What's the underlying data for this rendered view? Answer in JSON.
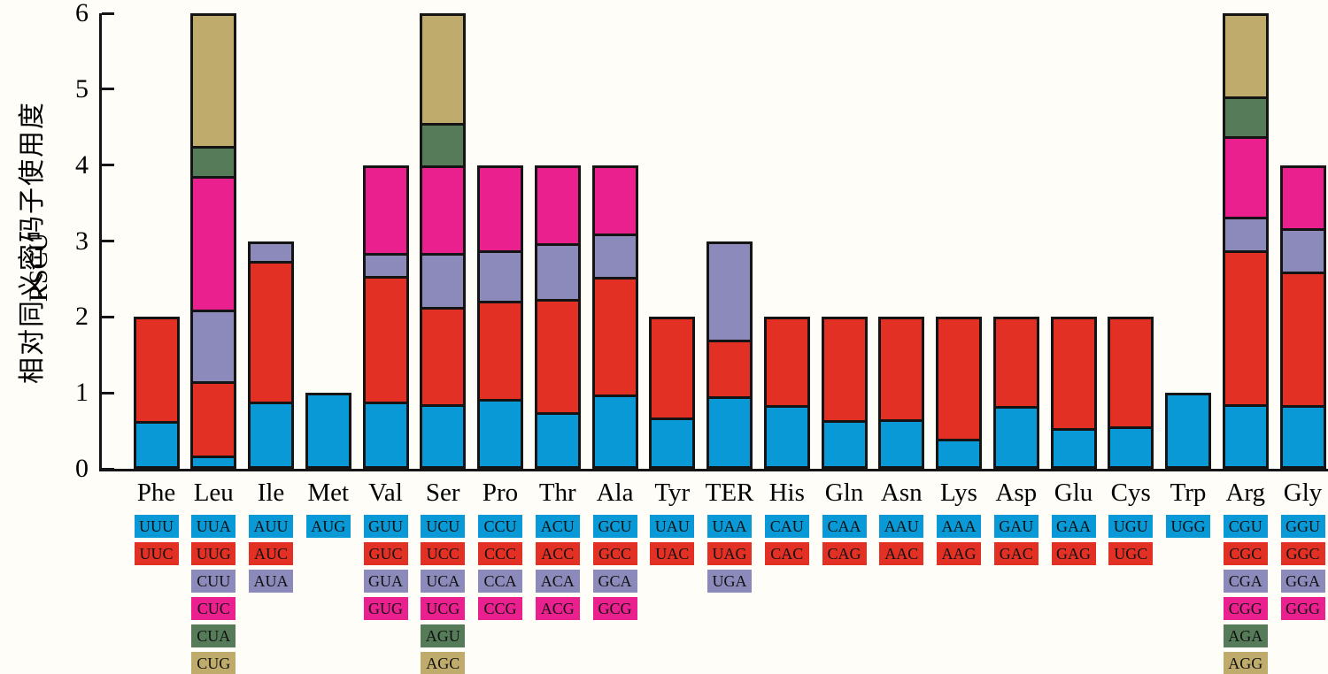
{
  "figure": {
    "background_color": "#FFFDF7",
    "line_color": "#141414"
  },
  "axes": {
    "y_label_cn": "相对同义密码子使用度",
    "y_label_en": "RSCU",
    "y_ticks": [
      "0",
      "1",
      "2",
      "3",
      "4",
      "5",
      "6"
    ],
    "y_min": 0,
    "y_max": 6
  },
  "chart_data": {
    "type": "bar",
    "stacked": true,
    "title": "",
    "xlabel": "",
    "ylabel": "相对同义密码子使用度 RSCU",
    "ylim": [
      0,
      6
    ],
    "grid": false,
    "legend_position": "none",
    "segment_colors": [
      "#0999D6",
      "#E23124",
      "#8C8ABA",
      "#E9208E",
      "#567B59",
      "#BFAC6C"
    ],
    "groups": [
      {
        "amino_acid": "Phe",
        "codons": [
          "UUU",
          "UUC"
        ],
        "values": [
          0.63,
          1.37
        ]
      },
      {
        "amino_acid": "Leu",
        "codons": [
          "UUA",
          "UUG",
          "CUU",
          "CUC",
          "CUA",
          "CUG"
        ],
        "values": [
          0.17,
          0.98,
          0.95,
          1.76,
          0.39,
          1.75
        ]
      },
      {
        "amino_acid": "Ile",
        "codons": [
          "AUU",
          "AUC",
          "AUA"
        ],
        "values": [
          0.89,
          1.85,
          0.26
        ]
      },
      {
        "amino_acid": "Met",
        "codons": [
          "AUG"
        ],
        "values": [
          1.0
        ]
      },
      {
        "amino_acid": "Val",
        "codons": [
          "GUU",
          "GUC",
          "GUA",
          "GUG"
        ],
        "values": [
          0.89,
          1.65,
          0.3,
          1.16
        ]
      },
      {
        "amino_acid": "Ser",
        "codons": [
          "UCU",
          "UCC",
          "UCA",
          "UCG",
          "AGU",
          "AGC"
        ],
        "values": [
          0.85,
          1.28,
          0.71,
          1.16,
          0.56,
          1.44
        ]
      },
      {
        "amino_acid": "Pro",
        "codons": [
          "CCU",
          "CCC",
          "CCA",
          "CCG"
        ],
        "values": [
          0.92,
          1.29,
          0.67,
          1.12
        ]
      },
      {
        "amino_acid": "Thr",
        "codons": [
          "ACU",
          "ACC",
          "ACA",
          "ACG"
        ],
        "values": [
          0.74,
          1.5,
          0.73,
          1.03
        ]
      },
      {
        "amino_acid": "Ala",
        "codons": [
          "GCU",
          "GCC",
          "GCA",
          "GCG"
        ],
        "values": [
          0.98,
          1.55,
          0.57,
          0.9
        ]
      },
      {
        "amino_acid": "Tyr",
        "codons": [
          "UAU",
          "UAC"
        ],
        "values": [
          0.67,
          1.33
        ]
      },
      {
        "amino_acid": "TER",
        "codons": [
          "UAA",
          "UAG",
          "UGA"
        ],
        "values": [
          0.95,
          0.75,
          1.3
        ]
      },
      {
        "amino_acid": "His",
        "codons": [
          "CAU",
          "CAC"
        ],
        "values": [
          0.84,
          1.16
        ]
      },
      {
        "amino_acid": "Gln",
        "codons": [
          "CAA",
          "CAG"
        ],
        "values": [
          0.64,
          1.36
        ]
      },
      {
        "amino_acid": "Asn",
        "codons": [
          "AAU",
          "AAC"
        ],
        "values": [
          0.65,
          1.35
        ]
      },
      {
        "amino_acid": "Lys",
        "codons": [
          "AAA",
          "AAG"
        ],
        "values": [
          0.4,
          1.6
        ]
      },
      {
        "amino_acid": "Asp",
        "codons": [
          "GAU",
          "GAC"
        ],
        "values": [
          0.83,
          1.17
        ]
      },
      {
        "amino_acid": "Glu",
        "codons": [
          "GAA",
          "GAG"
        ],
        "values": [
          0.54,
          1.46
        ]
      },
      {
        "amino_acid": "Cys",
        "codons": [
          "UGU",
          "UGC"
        ],
        "values": [
          0.56,
          1.44
        ]
      },
      {
        "amino_acid": "Trp",
        "codons": [
          "UGG"
        ],
        "values": [
          1.0
        ]
      },
      {
        "amino_acid": "Arg",
        "codons": [
          "CGU",
          "CGC",
          "CGA",
          "CGG",
          "AGA",
          "AGG"
        ],
        "values": [
          0.85,
          2.03,
          0.44,
          1.06,
          0.52,
          1.1
        ]
      },
      {
        "amino_acid": "Gly",
        "codons": [
          "GGU",
          "GGC",
          "GGA",
          "GGG"
        ],
        "values": [
          0.84,
          1.76,
          0.57,
          0.83
        ]
      }
    ]
  }
}
